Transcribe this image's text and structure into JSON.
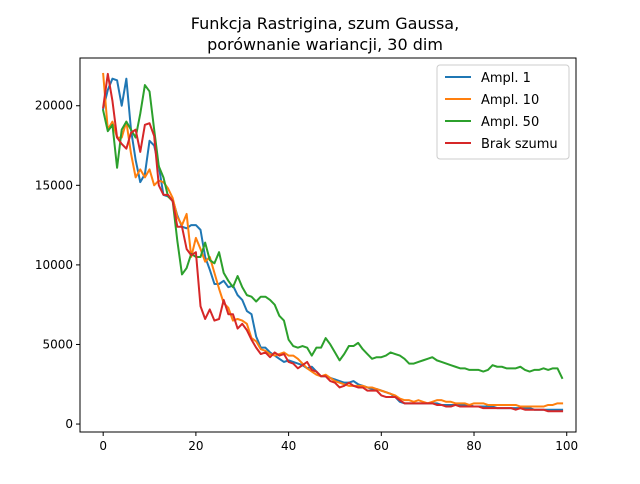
{
  "chart_data": {
    "type": "line",
    "title": "Funkcja Rastrigina, szum Gaussa,",
    "subtitle": "porównanie wariancji, 30 dim",
    "xlabel": "",
    "ylabel": "",
    "xlim": [
      -5,
      102
    ],
    "ylim": [
      -500,
      23000
    ],
    "xticks": [
      0,
      20,
      40,
      60,
      80,
      100
    ],
    "yticks": [
      0,
      5000,
      10000,
      15000,
      20000
    ],
    "grid": false,
    "legend_position": "top-right",
    "series": [
      {
        "name": "Ampl. 1",
        "color": "#1f77b4",
        "x": [
          0,
          1,
          2,
          3,
          4,
          5,
          6,
          7,
          8,
          9,
          10,
          11,
          12,
          13,
          14,
          15,
          16,
          17,
          18,
          19,
          20,
          21,
          22,
          23,
          24,
          25,
          26,
          27,
          28,
          29,
          30,
          31,
          32,
          33,
          34,
          35,
          36,
          37,
          38,
          39,
          40,
          41,
          42,
          43,
          44,
          45,
          46,
          47,
          48,
          49,
          50,
          51,
          52,
          53,
          54,
          55,
          56,
          57,
          58,
          59,
          60,
          61,
          62,
          63,
          64,
          65,
          66,
          67,
          68,
          69,
          70,
          71,
          72,
          73,
          74,
          75,
          76,
          77,
          78,
          79,
          80,
          81,
          82,
          83,
          84,
          85,
          86,
          87,
          88,
          89,
          90,
          91,
          92,
          93,
          94,
          95,
          96,
          97,
          98,
          99
        ],
        "y": [
          19800,
          21000,
          21700,
          21600,
          20000,
          21700,
          18500,
          16600,
          15200,
          15700,
          17800,
          17500,
          16200,
          14400,
          14300,
          14100,
          13100,
          12400,
          12300,
          12500,
          12500,
          12200,
          10500,
          9700,
          8800,
          8800,
          9000,
          8600,
          8700,
          8100,
          7800,
          7100,
          6900,
          5500,
          4800,
          4800,
          4500,
          4300,
          4100,
          3900,
          4000,
          3900,
          3800,
          3700,
          3500,
          3600,
          3300,
          3000,
          3000,
          2900,
          2800,
          2700,
          2600,
          2600,
          2700,
          2500,
          2400,
          2300,
          2200,
          2200,
          2100,
          2000,
          1900,
          1700,
          1400,
          1300,
          1300,
          1300,
          1300,
          1300,
          1300,
          1300,
          1300,
          1200,
          1200,
          1200,
          1200,
          1200,
          1200,
          1200,
          1100,
          1100,
          1100,
          1100,
          1100,
          1000,
          1000,
          1000,
          1000,
          1000,
          1000,
          1000,
          1000,
          900,
          900,
          900,
          900,
          900,
          900,
          900
        ]
      },
      {
        "name": "Ampl. 10",
        "color": "#ff7f0e",
        "x": [
          0,
          1,
          2,
          3,
          4,
          5,
          6,
          7,
          8,
          9,
          10,
          11,
          12,
          13,
          14,
          15,
          16,
          17,
          18,
          19,
          20,
          21,
          22,
          23,
          24,
          25,
          26,
          27,
          28,
          29,
          30,
          31,
          32,
          33,
          34,
          35,
          36,
          37,
          38,
          39,
          40,
          41,
          42,
          43,
          44,
          45,
          46,
          47,
          48,
          49,
          50,
          51,
          52,
          53,
          54,
          55,
          56,
          57,
          58,
          59,
          60,
          61,
          62,
          63,
          64,
          65,
          66,
          67,
          68,
          69,
          70,
          71,
          72,
          73,
          74,
          75,
          76,
          77,
          78,
          79,
          80,
          81,
          82,
          83,
          84,
          85,
          86,
          87,
          88,
          89,
          90,
          91,
          92,
          93,
          94,
          95,
          96,
          97,
          98,
          99
        ],
        "y": [
          22000,
          18500,
          19000,
          18000,
          18000,
          19000,
          17000,
          15500,
          16000,
          15500,
          16000,
          15000,
          15300,
          15200,
          14800,
          14200,
          13000,
          12500,
          13200,
          10500,
          11700,
          11000,
          10200,
          10500,
          9500,
          8500,
          7600,
          7300,
          6500,
          6600,
          6500,
          6300,
          5400,
          5200,
          4700,
          4600,
          4400,
          4300,
          4400,
          4500,
          4300,
          4300,
          4100,
          3800,
          3500,
          3300,
          3100,
          3000,
          3100,
          2900,
          2700,
          2600,
          2500,
          2400,
          2400,
          2400,
          2400,
          2300,
          2300,
          2200,
          2100,
          2000,
          1900,
          1800,
          1600,
          1500,
          1500,
          1400,
          1500,
          1400,
          1300,
          1400,
          1500,
          1500,
          1400,
          1400,
          1300,
          1300,
          1300,
          1200,
          1300,
          1300,
          1300,
          1200,
          1200,
          1200,
          1200,
          1200,
          1200,
          1200,
          1100,
          1100,
          1100,
          1100,
          1100,
          1100,
          1200,
          1200,
          1300,
          1300
        ]
      },
      {
        "name": "Ampl. 50",
        "color": "#2ca02c",
        "x": [
          0,
          1,
          2,
          3,
          4,
          5,
          6,
          7,
          8,
          9,
          10,
          11,
          12,
          13,
          14,
          15,
          16,
          17,
          18,
          19,
          20,
          21,
          22,
          23,
          24,
          25,
          26,
          27,
          28,
          29,
          30,
          31,
          32,
          33,
          34,
          35,
          36,
          37,
          38,
          39,
          40,
          41,
          42,
          43,
          44,
          45,
          46,
          47,
          48,
          49,
          50,
          51,
          52,
          53,
          54,
          55,
          56,
          57,
          58,
          59,
          60,
          61,
          62,
          63,
          64,
          65,
          66,
          67,
          68,
          69,
          70,
          71,
          72,
          73,
          74,
          75,
          76,
          77,
          78,
          79,
          80,
          81,
          82,
          83,
          84,
          85,
          86,
          87,
          88,
          89,
          90,
          91,
          92,
          93,
          94,
          95,
          96,
          97,
          98,
          99
        ],
        "y": [
          19700,
          18400,
          18800,
          16100,
          18500,
          19000,
          18500,
          18000,
          19500,
          21300,
          20900,
          18500,
          16200,
          15500,
          14300,
          14000,
          11500,
          9400,
          9800,
          10700,
          10500,
          10500,
          11400,
          10300,
          10100,
          10800,
          9500,
          9000,
          8600,
          9300,
          8600,
          8100,
          8000,
          7700,
          8000,
          8000,
          7800,
          7500,
          6800,
          6500,
          5300,
          4900,
          4800,
          4900,
          4800,
          4300,
          4800,
          4800,
          5400,
          5000,
          4500,
          4000,
          4400,
          4900,
          4900,
          5100,
          4700,
          4400,
          4100,
          4200,
          4200,
          4300,
          4500,
          4400,
          4300,
          4100,
          3800,
          3800,
          3900,
          4000,
          4100,
          4200,
          4000,
          3900,
          3800,
          3700,
          3600,
          3500,
          3500,
          3400,
          3400,
          3400,
          3300,
          3400,
          3700,
          3600,
          3600,
          3500,
          3500,
          3500,
          3600,
          3400,
          3300,
          3400,
          3400,
          3500,
          3400,
          3500,
          3500,
          2900
        ]
      },
      {
        "name": "Brak szumu",
        "color": "#d62728",
        "x": [
          0,
          1,
          2,
          3,
          4,
          5,
          6,
          7,
          8,
          9,
          10,
          11,
          12,
          13,
          14,
          15,
          16,
          17,
          18,
          19,
          20,
          21,
          22,
          23,
          24,
          25,
          26,
          27,
          28,
          29,
          30,
          31,
          32,
          33,
          34,
          35,
          36,
          37,
          38,
          39,
          40,
          41,
          42,
          43,
          44,
          45,
          46,
          47,
          48,
          49,
          50,
          51,
          52,
          53,
          54,
          55,
          56,
          57,
          58,
          59,
          60,
          61,
          62,
          63,
          64,
          65,
          66,
          67,
          68,
          69,
          70,
          71,
          72,
          73,
          74,
          75,
          76,
          77,
          78,
          79,
          80,
          81,
          82,
          83,
          84,
          85,
          86,
          87,
          88,
          89,
          90,
          91,
          92,
          93,
          94,
          95,
          96,
          97,
          98,
          99
        ],
        "y": [
          19900,
          22000,
          20300,
          18000,
          17600,
          17300,
          18300,
          18500,
          17100,
          18800,
          18900,
          18100,
          15000,
          14400,
          14400,
          14000,
          12400,
          12400,
          11000,
          10600,
          10800,
          7400,
          6600,
          7200,
          6500,
          6600,
          7800,
          6900,
          6900,
          6000,
          6300,
          5900,
          5300,
          4800,
          4400,
          4500,
          4200,
          4500,
          4300,
          4400,
          3900,
          3800,
          3500,
          3700,
          3900,
          3400,
          3300,
          3000,
          3000,
          2700,
          2600,
          2300,
          2400,
          2600,
          2400,
          2300,
          2300,
          2100,
          2100,
          2100,
          1800,
          1700,
          1700,
          1700,
          1500,
          1300,
          1300,
          1300,
          1300,
          1300,
          1300,
          1300,
          1200,
          1200,
          1100,
          1100,
          1200,
          1100,
          1100,
          1100,
          1100,
          1100,
          1000,
          1000,
          1000,
          1000,
          1000,
          1000,
          1000,
          900,
          1000,
          900,
          900,
          900,
          900,
          900,
          800,
          800,
          800,
          800
        ]
      }
    ]
  }
}
